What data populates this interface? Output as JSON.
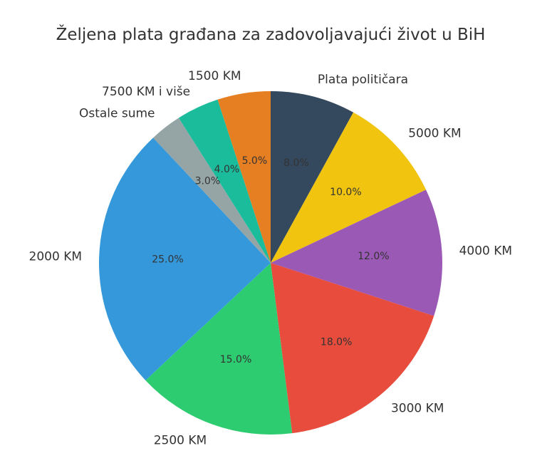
{
  "chart_data": {
    "type": "pie",
    "title": "Željena plata građana za zadovoljavajući život u BiH",
    "start_angle_deg": 90,
    "direction": "clockwise",
    "slices": [
      {
        "label": "Plata političara",
        "value": 8.0,
        "pct_label": "8.0%",
        "color": "#34495e"
      },
      {
        "label": "5000 KM",
        "value": 10.0,
        "pct_label": "10.0%",
        "color": "#f1c40f"
      },
      {
        "label": "4000 KM",
        "value": 12.0,
        "pct_label": "12.0%",
        "color": "#9b59b6"
      },
      {
        "label": "3000 KM",
        "value": 18.0,
        "pct_label": "18.0%",
        "color": "#e74c3c"
      },
      {
        "label": "2500 KM",
        "value": 15.0,
        "pct_label": "15.0%",
        "color": "#2ecc71"
      },
      {
        "label": "2000 KM",
        "value": 25.0,
        "pct_label": "25.0%",
        "color": "#3498db"
      },
      {
        "label": "Ostale sume",
        "value": 3.0,
        "pct_label": "3.0%",
        "color": "#95a5a6"
      },
      {
        "label": "7500 KM i više",
        "value": 4.0,
        "pct_label": "4.0%",
        "color": "#1abc9c"
      },
      {
        "label": "1500 KM",
        "value": 5.0,
        "pct_label": "5.0%",
        "color": "#e67e22"
      }
    ]
  }
}
